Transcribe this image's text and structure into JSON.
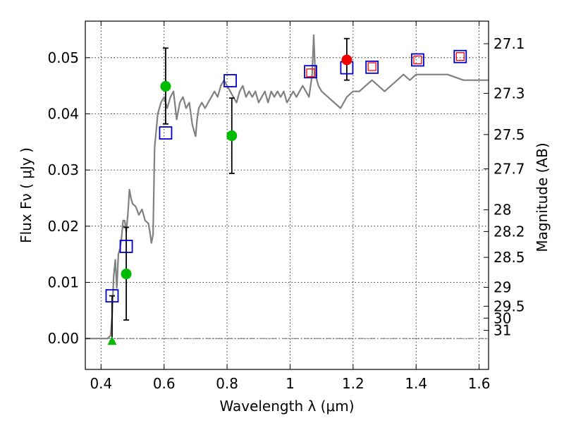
{
  "chart_data": {
    "type": "scatter",
    "xlabel": "Wavelength  λ (μm)",
    "ylabel": "Flux  Fν  ( μJy )",
    "y2label": "Magnitude (AB)",
    "xlim": [
      0.35,
      1.63
    ],
    "ylim": [
      -0.0055,
      0.0565
    ],
    "grid": true,
    "x_ticks": [
      {
        "v": 0.4,
        "t": "0.4"
      },
      {
        "v": 0.6,
        "t": "0.6"
      },
      {
        "v": 0.8,
        "t": "0.8"
      },
      {
        "v": 1.0,
        "t": "1"
      },
      {
        "v": 1.2,
        "t": "1.2"
      },
      {
        "v": 1.4,
        "t": "1.4"
      },
      {
        "v": 1.6,
        "t": "1.6"
      }
    ],
    "y_ticks": [
      {
        "v": 0.0,
        "t": "0.00"
      },
      {
        "v": 0.01,
        "t": "0.01"
      },
      {
        "v": 0.02,
        "t": "0.02"
      },
      {
        "v": 0.03,
        "t": "0.03"
      },
      {
        "v": 0.04,
        "t": "0.04"
      },
      {
        "v": 0.05,
        "t": "0.05"
      }
    ],
    "mag_ticks": [
      {
        "t": "27.1",
        "flux": 0.05248
      },
      {
        "t": "27.3",
        "flux": 0.04365
      },
      {
        "t": "27.5",
        "flux": 0.03631
      },
      {
        "t": "27.7",
        "flux": 0.0302
      },
      {
        "t": "28",
        "flux": 0.02291
      },
      {
        "t": "28.2",
        "flux": 0.01905
      },
      {
        "t": "28.5",
        "flux": 0.01445
      },
      {
        "t": "29",
        "flux": 0.00912
      },
      {
        "t": "29.5",
        "flux": 0.00575
      },
      {
        "t": "30",
        "flux": 0.00363
      },
      {
        "t": "31",
        "flux": 0.00145
      }
    ],
    "series": [
      {
        "name": "model spectrum",
        "kind": "line",
        "color": "#808080",
        "points": [
          [
            0.35,
            0
          ],
          [
            0.42,
            0
          ],
          [
            0.43,
            0.0005
          ],
          [
            0.435,
            0.004
          ],
          [
            0.44,
            0.011
          ],
          [
            0.445,
            0.014
          ],
          [
            0.45,
            0.009
          ],
          [
            0.455,
            0.015
          ],
          [
            0.46,
            0.016
          ],
          [
            0.465,
            0.018
          ],
          [
            0.47,
            0.021
          ],
          [
            0.475,
            0.021
          ],
          [
            0.48,
            0.019
          ],
          [
            0.485,
            0.022
          ],
          [
            0.49,
            0.0265
          ],
          [
            0.495,
            0.025
          ],
          [
            0.5,
            0.024
          ],
          [
            0.51,
            0.0235
          ],
          [
            0.52,
            0.022
          ],
          [
            0.53,
            0.023
          ],
          [
            0.54,
            0.021
          ],
          [
            0.55,
            0.0205
          ],
          [
            0.555,
            0.019
          ],
          [
            0.56,
            0.017
          ],
          [
            0.565,
            0.0185
          ],
          [
            0.57,
            0.034
          ],
          [
            0.58,
            0.04
          ],
          [
            0.59,
            0.042
          ],
          [
            0.6,
            0.043
          ],
          [
            0.61,
            0.041
          ],
          [
            0.62,
            0.043
          ],
          [
            0.63,
            0.044
          ],
          [
            0.64,
            0.039
          ],
          [
            0.65,
            0.042
          ],
          [
            0.66,
            0.043
          ],
          [
            0.67,
            0.041
          ],
          [
            0.68,
            0.042
          ],
          [
            0.69,
            0.038
          ],
          [
            0.7,
            0.036
          ],
          [
            0.705,
            0.039
          ],
          [
            0.71,
            0.041
          ],
          [
            0.72,
            0.042
          ],
          [
            0.73,
            0.041
          ],
          [
            0.74,
            0.042
          ],
          [
            0.75,
            0.043
          ],
          [
            0.76,
            0.044
          ],
          [
            0.77,
            0.043
          ],
          [
            0.78,
            0.045
          ],
          [
            0.79,
            0.046
          ],
          [
            0.8,
            0.045
          ],
          [
            0.81,
            0.044
          ],
          [
            0.82,
            0.043
          ],
          [
            0.83,
            0.042
          ],
          [
            0.84,
            0.044
          ],
          [
            0.85,
            0.045
          ],
          [
            0.86,
            0.043
          ],
          [
            0.87,
            0.044
          ],
          [
            0.88,
            0.043
          ],
          [
            0.89,
            0.044
          ],
          [
            0.9,
            0.042
          ],
          [
            0.91,
            0.043
          ],
          [
            0.92,
            0.044
          ],
          [
            0.93,
            0.042
          ],
          [
            0.94,
            0.044
          ],
          [
            0.95,
            0.043
          ],
          [
            0.96,
            0.044
          ],
          [
            0.97,
            0.043
          ],
          [
            0.98,
            0.044
          ],
          [
            0.99,
            0.042
          ],
          [
            1.0,
            0.043
          ],
          [
            1.01,
            0.044
          ],
          [
            1.02,
            0.043
          ],
          [
            1.03,
            0.044
          ],
          [
            1.04,
            0.045
          ],
          [
            1.05,
            0.044
          ],
          [
            1.06,
            0.043
          ],
          [
            1.07,
            0.047
          ],
          [
            1.075,
            0.054
          ],
          [
            1.08,
            0.047
          ],
          [
            1.09,
            0.045
          ],
          [
            1.1,
            0.044
          ],
          [
            1.12,
            0.043
          ],
          [
            1.14,
            0.042
          ],
          [
            1.16,
            0.041
          ],
          [
            1.18,
            0.043
          ],
          [
            1.2,
            0.044
          ],
          [
            1.22,
            0.044
          ],
          [
            1.24,
            0.045
          ],
          [
            1.26,
            0.046
          ],
          [
            1.28,
            0.045
          ],
          [
            1.3,
            0.044
          ],
          [
            1.32,
            0.045
          ],
          [
            1.34,
            0.046
          ],
          [
            1.36,
            0.047
          ],
          [
            1.38,
            0.046
          ],
          [
            1.4,
            0.047
          ],
          [
            1.45,
            0.047
          ],
          [
            1.5,
            0.047
          ],
          [
            1.55,
            0.046
          ],
          [
            1.6,
            0.046
          ],
          [
            1.63,
            0.046
          ]
        ]
      },
      {
        "name": "blue model photometry",
        "kind": "open-square",
        "color": "#0000cc",
        "points": [
          [
            0.435,
            0.0076
          ],
          [
            0.48,
            0.0164
          ],
          [
            0.605,
            0.0366
          ],
          [
            0.81,
            0.0459
          ],
          [
            1.065,
            0.0475
          ],
          [
            1.18,
            0.0482
          ],
          [
            1.26,
            0.0483
          ],
          [
            1.405,
            0.0496
          ],
          [
            1.54,
            0.0502
          ]
        ]
      },
      {
        "name": "red model photometry",
        "kind": "small-square",
        "color": "#ff0000",
        "points": [
          [
            1.065,
            0.0473
          ],
          [
            1.26,
            0.0484
          ],
          [
            1.405,
            0.0496
          ],
          [
            1.54,
            0.0502
          ]
        ]
      },
      {
        "name": "green observed fluxes",
        "kind": "circle",
        "color": "#00bb00",
        "points": [
          [
            0.48,
            0.0115
          ],
          [
            0.605,
            0.0449
          ],
          [
            0.815,
            0.0361
          ]
        ]
      },
      {
        "name": "red observed flux",
        "kind": "circle",
        "color": "#ee0000",
        "points": [
          [
            1.18,
            0.0496
          ]
        ]
      },
      {
        "name": "upper limit",
        "kind": "triangle",
        "color": "#00bb00",
        "points": [
          [
            0.435,
            -0.0005
          ]
        ]
      }
    ],
    "error_bars": [
      {
        "x": 0.435,
        "low": -0.0005,
        "high": 0.0076
      },
      {
        "x": 0.48,
        "low": 0.0033,
        "high": 0.0198
      },
      {
        "x": 0.605,
        "low": 0.0382,
        "high": 0.0517
      },
      {
        "x": 0.815,
        "low": 0.0294,
        "high": 0.0428
      },
      {
        "x": 1.18,
        "low": 0.046,
        "high": 0.0534
      }
    ]
  }
}
